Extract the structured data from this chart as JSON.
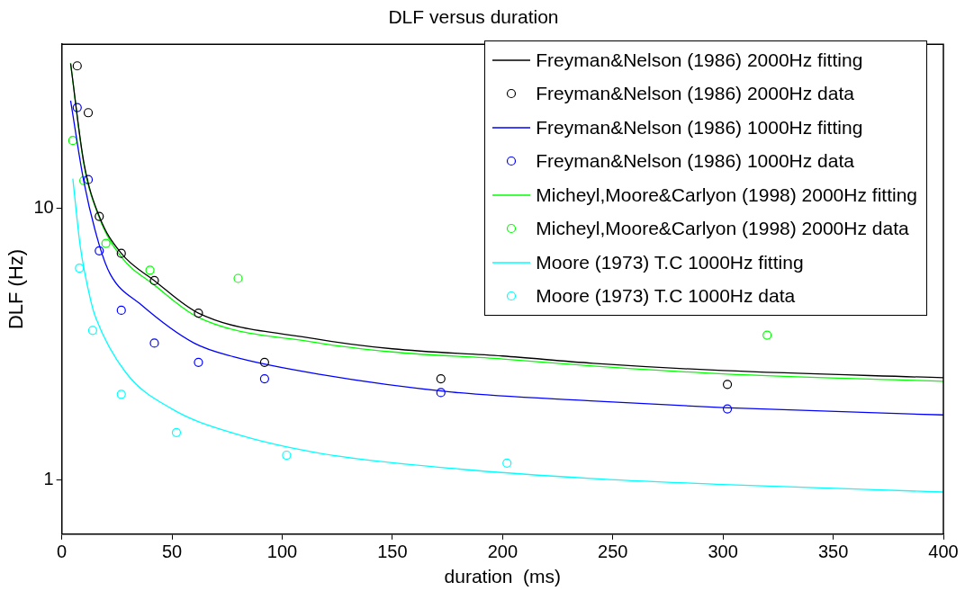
{
  "chart_data": {
    "type": "line",
    "title": "DLF versus duration",
    "xlabel": "duration  (ms)",
    "ylabel": "DLF (Hz)",
    "xlim": [
      0,
      400
    ],
    "xticks": [
      0,
      50,
      100,
      150,
      200,
      250,
      300,
      350,
      400
    ],
    "ylim": [
      0.63,
      40
    ],
    "yticks": [
      1,
      10
    ],
    "log": "y",
    "grid": false,
    "legend": "top right",
    "series": [
      {
        "name": "Freyman&Nelson (1986) 2000Hz fitting",
        "type": "line",
        "color": "#000000",
        "marker": "none",
        "line_style": "solid",
        "x": [
          4,
          10,
          17,
          27,
          42,
          62,
          115,
          150,
          200,
          241,
          300,
          400
        ],
        "values": [
          34,
          14.7,
          9.3,
          6.8,
          5.4,
          4.1,
          3.3,
          3.03,
          2.85,
          2.68,
          2.52,
          2.37
        ]
      },
      {
        "name": "Freyman&Nelson (1986) 2000Hz data",
        "type": "scatter",
        "color": "#000000",
        "marker": "circle",
        "x": [
          7,
          12,
          17,
          27,
          42,
          62,
          92,
          172,
          302
        ],
        "values": [
          33.3,
          22.4,
          9.3,
          6.8,
          5.4,
          4.1,
          2.7,
          2.35,
          2.24
        ]
      },
      {
        "name": "Freyman&Nelson (1986) 1000Hz fitting",
        "type": "line",
        "color": "#0000ff",
        "marker": "none",
        "line_style": "solid",
        "x": [
          4,
          10,
          17,
          22,
          36,
          60,
          78,
          117,
          177,
          240,
          300,
          400
        ],
        "values": [
          24.8,
          12.5,
          7.3,
          5.7,
          4.4,
          3.18,
          2.83,
          2.44,
          2.1,
          1.95,
          1.84,
          1.73
        ]
      },
      {
        "name": "Freyman&Nelson (1986) 1000Hz data",
        "type": "scatter",
        "color": "#0000ff",
        "marker": "circle",
        "x": [
          7,
          12,
          17,
          27,
          42,
          62,
          92,
          172,
          302
        ],
        "values": [
          23.4,
          12.7,
          6.95,
          4.2,
          3.18,
          2.7,
          2.35,
          2.09,
          1.82
        ]
      },
      {
        "name": "Micheyl,Moore&Carlyon (1998) 2000Hz fitting",
        "type": "line",
        "color": "#00ff00",
        "marker": "none",
        "line_style": "solid",
        "x": [
          4,
          10,
          17,
          27,
          42,
          62,
          115,
          150,
          200,
          241,
          300,
          400
        ],
        "values": [
          34,
          14.5,
          9.2,
          6.6,
          5.2,
          3.95,
          3.2,
          2.95,
          2.78,
          2.62,
          2.45,
          2.3
        ]
      },
      {
        "name": "Micheyl,Moore&Carlyon (1998) 2000Hz data",
        "type": "scatter",
        "color": "#00ff00",
        "marker": "circle",
        "x": [
          5,
          10,
          20,
          40,
          80,
          320
        ],
        "values": [
          17.7,
          12.6,
          7.4,
          5.9,
          5.5,
          3.4
        ]
      },
      {
        "name": "Moore (1973) T.C 1000Hz fitting",
        "type": "line",
        "color": "#00ffff",
        "marker": "none",
        "line_style": "solid",
        "x": [
          5,
          8.4,
          13.3,
          15.4,
          29,
          50,
          78,
          117,
          177,
          240,
          300,
          400
        ],
        "values": [
          12.8,
          7.2,
          4.5,
          3.94,
          2.48,
          1.82,
          1.48,
          1.25,
          1.1,
          1.01,
          0.96,
          0.9
        ]
      },
      {
        "name": "Moore (1973) T.C 1000Hz data",
        "type": "scatter",
        "color": "#00ffff",
        "marker": "circle",
        "x": [
          8,
          14,
          27,
          52,
          102,
          202
        ],
        "values": [
          6.0,
          3.54,
          2.06,
          1.49,
          1.23,
          1.15
        ]
      }
    ]
  }
}
